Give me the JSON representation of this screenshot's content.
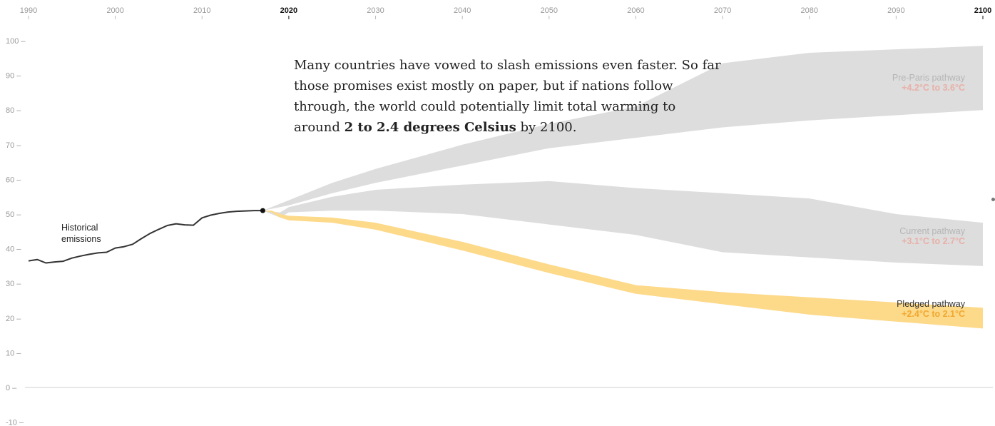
{
  "chart_data": {
    "type": "area",
    "x_ticks": [
      {
        "label": "1990",
        "value": 1990,
        "strong": false
      },
      {
        "label": "2000",
        "value": 2000,
        "strong": false
      },
      {
        "label": "2010",
        "value": 2010,
        "strong": false
      },
      {
        "label": "2020",
        "value": 2020,
        "strong": true
      },
      {
        "label": "2030",
        "value": 2030,
        "strong": false
      },
      {
        "label": "2040",
        "value": 2040,
        "strong": false
      },
      {
        "label": "2050",
        "value": 2050,
        "strong": false
      },
      {
        "label": "2060",
        "value": 2060,
        "strong": false
      },
      {
        "label": "2070",
        "value": 2070,
        "strong": false
      },
      {
        "label": "2080",
        "value": 2080,
        "strong": false
      },
      {
        "label": "2090",
        "value": 2090,
        "strong": false
      },
      {
        "label": "2100",
        "value": 2100,
        "strong": true
      }
    ],
    "y_ticks": [
      {
        "label": "100 –",
        "value": 100
      },
      {
        "label": "90 –",
        "value": 90
      },
      {
        "label": "80 –",
        "value": 80
      },
      {
        "label": "70 –",
        "value": 70
      },
      {
        "label": "60 –",
        "value": 60
      },
      {
        "label": "50 –",
        "value": 50
      },
      {
        "label": "40 –",
        "value": 40
      },
      {
        "label": "30 –",
        "value": 30
      },
      {
        "label": "20 –",
        "value": 20
      },
      {
        "label": "10 –",
        "value": 10
      },
      {
        "label": "0 –",
        "value": 0
      },
      {
        "label": "-10 –",
        "value": -10
      }
    ],
    "xlim": [
      1990,
      2100
    ],
    "ylim": [
      -10,
      100
    ],
    "zero_line": 0,
    "historical": {
      "label_line1": "Historical",
      "label_line2": "emissions",
      "color": "#333333",
      "x": [
        1990,
        1991,
        1992,
        1993,
        1994,
        1995,
        1996,
        1997,
        1998,
        1999,
        2000,
        2001,
        2002,
        2003,
        2004,
        2005,
        2006,
        2007,
        2008,
        2009,
        2010,
        2011,
        2012,
        2013,
        2014,
        2015,
        2016,
        2017
      ],
      "y": [
        36.5,
        36.9,
        35.9,
        36.2,
        36.4,
        37.3,
        37.9,
        38.4,
        38.8,
        39.0,
        40.2,
        40.6,
        41.3,
        42.9,
        44.4,
        45.6,
        46.7,
        47.2,
        46.9,
        46.8,
        48.9,
        49.7,
        50.2,
        50.6,
        50.8,
        50.9,
        51.0,
        51.0
      ]
    },
    "pre_paris": {
      "label": "Pre-Paris pathway",
      "range_label": "+4.2°C to 3.6°C",
      "range_color": "#e8b0a8",
      "label_color": "#b5b5b5",
      "fill": "#dddddd",
      "x": [
        2017,
        2020,
        2025,
        2030,
        2040,
        2050,
        2060,
        2070,
        2080,
        2090,
        2100
      ],
      "upper": [
        51.0,
        54.0,
        59.0,
        63.0,
        70.0,
        76.0,
        81.0,
        93.5,
        96.5,
        97.5,
        98.5
      ],
      "lower": [
        51.0,
        52.5,
        56.0,
        59.0,
        64.0,
        69.0,
        72.0,
        75.0,
        77.0,
        78.5,
        80.0
      ]
    },
    "current": {
      "label": "Current pathway",
      "range_label": "+3.1°C to 2.7°C",
      "range_color": "#e8b0a8",
      "label_color": "#b5b5b5",
      "fill": "#dddddd",
      "x": [
        2017,
        2019,
        2020,
        2025,
        2030,
        2040,
        2050,
        2060,
        2070,
        2080,
        2090,
        2100
      ],
      "upper": [
        51.0,
        50.5,
        52.0,
        55.0,
        57.0,
        58.5,
        59.5,
        57.5,
        56.0,
        54.5,
        50.0,
        47.5
      ],
      "lower": [
        51.0,
        49.0,
        50.5,
        51.0,
        51.0,
        50.0,
        47.0,
        44.0,
        39.0,
        37.5,
        36.0,
        35.0
      ]
    },
    "pledged": {
      "label": "Pledged pathway",
      "range_label": "+2.4°C to 2.1°C",
      "range_color": "#f0a830",
      "label_color": "#333333",
      "fill": "#fdd98a",
      "x": [
        2017,
        2018,
        2019,
        2020,
        2025,
        2030,
        2040,
        2050,
        2060,
        2070,
        2080,
        2090,
        2100
      ],
      "upper": [
        51.0,
        51.0,
        50.0,
        49.5,
        49.0,
        47.5,
        42.0,
        35.5,
        29.5,
        27.5,
        26.0,
        24.5,
        23.0
      ],
      "lower": [
        51.0,
        50.5,
        49.0,
        48.2,
        47.5,
        45.5,
        39.5,
        33.0,
        27.0,
        24.0,
        21.0,
        19.0,
        17.0
      ]
    }
  },
  "annotation": {
    "text_before": "Many countries have vowed to slash emissions even faster. So far those promises exist mostly on paper, but if nations follow through, the world could potentially limit total warming to around ",
    "text_bold": "2 to 2.4 degrees Celsius",
    "text_after": " by 2100."
  }
}
